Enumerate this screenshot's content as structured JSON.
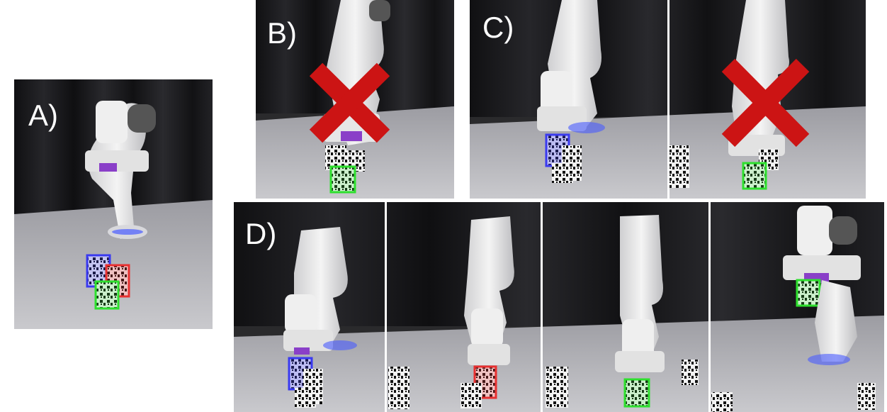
{
  "panels": {
    "a": {
      "label": "A)"
    },
    "b": {
      "label": "B)"
    },
    "c": {
      "label": "C)"
    },
    "d": {
      "label": "D)"
    }
  },
  "colors": {
    "blue_box": "#3a3af0",
    "red_box": "#e83030",
    "green_box": "#2ee02e",
    "cross": "#cc1414",
    "gripper_object": "#8a3fc8",
    "curtain": "#141416",
    "floor": "#b9b9bd",
    "robot": "#e8e8e8"
  }
}
